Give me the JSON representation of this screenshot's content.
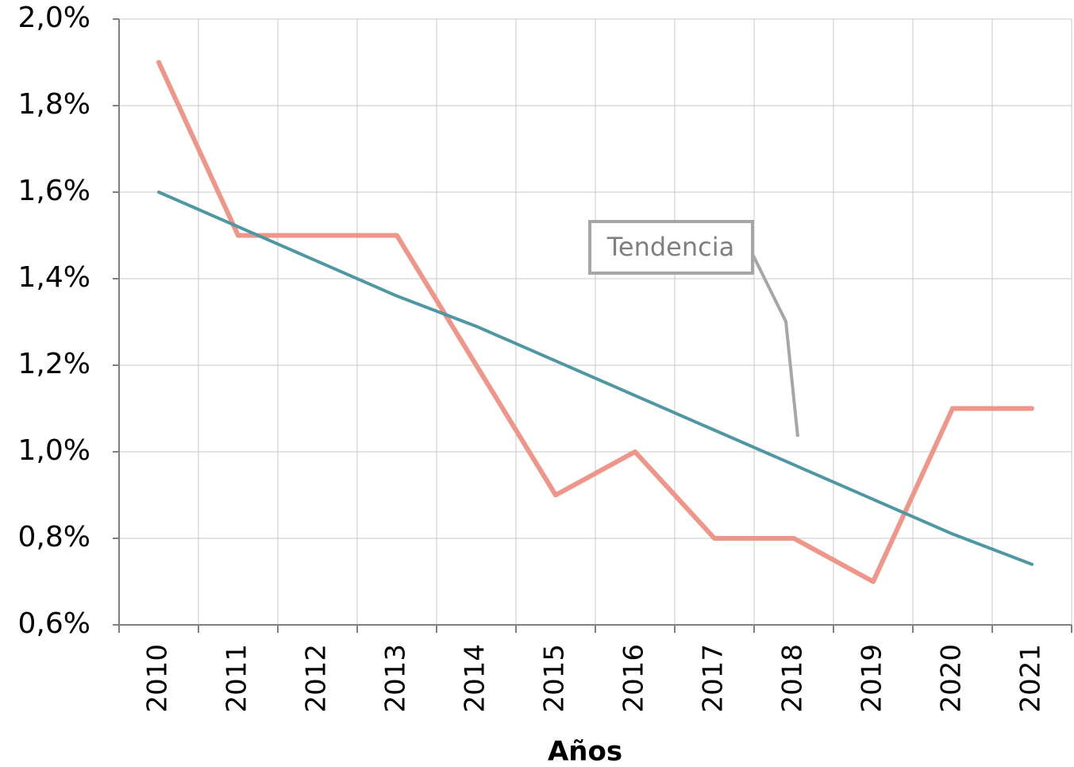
{
  "chart_data": {
    "type": "line",
    "x_label": "Años",
    "categories": [
      "2010",
      "2011",
      "2012",
      "2013",
      "2014",
      "2015",
      "2016",
      "2017",
      "2018",
      "2019",
      "2020",
      "2021"
    ],
    "series": [
      {
        "color": "#f0958a",
        "values": [
          1.9,
          1.5,
          1.5,
          1.5,
          1.2,
          0.9,
          1.0,
          0.8,
          0.8,
          0.7,
          1.1,
          1.1
        ]
      },
      {
        "name": "Tendencia",
        "color": "#4f97a3",
        "values": [
          1.6,
          1.52,
          1.44,
          1.36,
          1.29,
          1.21,
          1.13,
          1.05,
          0.97,
          0.89,
          0.81,
          0.74
        ]
      }
    ],
    "ylim": [
      0.6,
      2.0
    ],
    "yticks": [
      {
        "value": 0.6,
        "label": "0,6%"
      },
      {
        "value": 0.8,
        "label": "0,8%"
      },
      {
        "value": 1.0,
        "label": "1,0%"
      },
      {
        "value": 1.2,
        "label": "1,2%"
      },
      {
        "value": 1.4,
        "label": "1,4%"
      },
      {
        "value": 1.6,
        "label": "1,6%"
      },
      {
        "value": 1.8,
        "label": "1,8%"
      },
      {
        "value": 2.0,
        "label": "2,0%"
      }
    ],
    "grid": true
  }
}
